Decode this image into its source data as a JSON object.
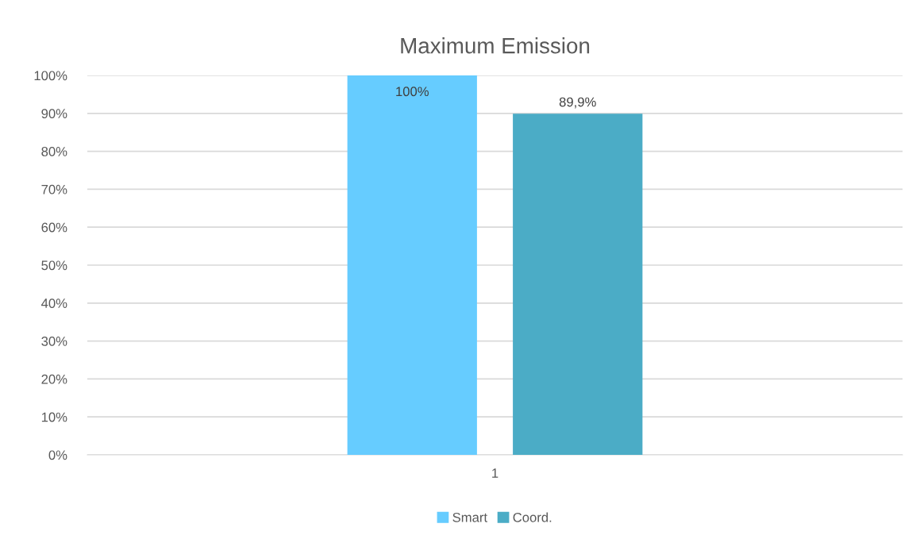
{
  "chart_data": {
    "type": "bar",
    "title": "Maximum Emission",
    "categories": [
      "1"
    ],
    "series": [
      {
        "name": "Smart",
        "color": "#66ccff",
        "values": [
          100
        ],
        "value_labels": [
          "100%"
        ]
      },
      {
        "name": "Coord.",
        "color": "#4bacc6",
        "values": [
          89.9
        ],
        "value_labels": [
          "89,9%"
        ]
      }
    ],
    "ylim": [
      0,
      100
    ],
    "yticks": [
      {
        "value": 0,
        "label": "0%"
      },
      {
        "value": 10,
        "label": "10%"
      },
      {
        "value": 20,
        "label": "20%"
      },
      {
        "value": 30,
        "label": "30%"
      },
      {
        "value": 40,
        "label": "40%"
      },
      {
        "value": 50,
        "label": "50%"
      },
      {
        "value": 60,
        "label": "60%"
      },
      {
        "value": 70,
        "label": "70%"
      },
      {
        "value": 80,
        "label": "80%"
      },
      {
        "value": 90,
        "label": "90%"
      },
      {
        "value": 100,
        "label": "100%"
      }
    ],
    "grid": "y",
    "legend": "bottom"
  }
}
